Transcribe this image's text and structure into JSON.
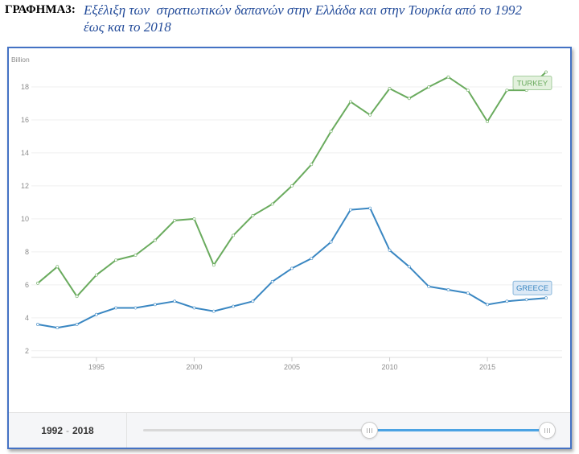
{
  "caption": {
    "label": "ΓΡΑΦΗΜΑ3:",
    "line1": "Εξέλιξη των  στρατιωτικών δαπανών στην Ελλάδα και στην Τουρκία από το 1992",
    "line2": "έως και το 2018",
    "label_color": "#000000",
    "title_color": "#244c9a"
  },
  "frame_color": "#4472c4",
  "chart_data": {
    "type": "line",
    "ylabel": "Billion",
    "x": [
      1992,
      1993,
      1994,
      1995,
      1996,
      1997,
      1998,
      1999,
      2000,
      2001,
      2002,
      2003,
      2004,
      2005,
      2006,
      2007,
      2008,
      2009,
      2010,
      2011,
      2012,
      2013,
      2014,
      2015,
      2016,
      2017,
      2018
    ],
    "xlim": [
      1992,
      2018
    ],
    "ylim": [
      1.6,
      20
    ],
    "xticks": [
      1995,
      2000,
      2005,
      2010,
      2015
    ],
    "yticks": [
      2,
      4,
      6,
      8,
      10,
      12,
      14,
      16,
      18
    ],
    "grid": true,
    "legend": "right",
    "series": [
      {
        "name": "TURKEY",
        "color": "#6aab5e",
        "label_bg": "#e3f1dd",
        "values": [
          6.1,
          7.1,
          5.3,
          6.6,
          7.5,
          7.8,
          8.7,
          9.9,
          10.0,
          7.2,
          9.0,
          10.2,
          10.9,
          12.0,
          13.3,
          15.3,
          17.1,
          16.3,
          17.9,
          17.3,
          18.0,
          18.6,
          17.8,
          15.9,
          17.8,
          17.8,
          18.9
        ]
      },
      {
        "name": "GREECE",
        "color": "#3a87c2",
        "label_bg": "#dce9f6",
        "values": [
          3.6,
          3.4,
          3.6,
          4.2,
          4.6,
          4.6,
          4.8,
          5.0,
          4.6,
          4.4,
          4.7,
          5.0,
          6.2,
          7.0,
          7.6,
          8.6,
          10.55,
          10.65,
          8.1,
          7.1,
          5.9,
          5.7,
          5.5,
          4.8,
          5.0,
          5.1,
          5.2
        ]
      }
    ]
  },
  "range": {
    "start": "1992",
    "separator": "-",
    "end": "2018",
    "selection_start_fraction": 0.56,
    "selection_end_fraction": 1.0,
    "fill_color": "#4ba3e3"
  }
}
